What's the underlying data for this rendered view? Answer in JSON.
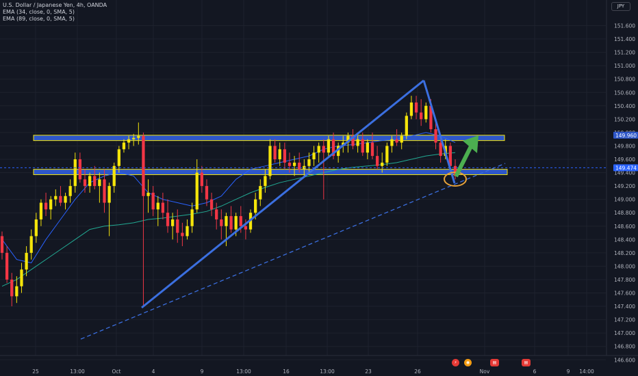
{
  "legend": {
    "symbol": "U.S. Dollar / Japanese Yen, 4h, OANDA",
    "ema1": "EMA (34, close, 0, SMA, 5)",
    "ema2": "EMA (89, close, 0, SMA, 5)"
  },
  "currency_badge": "JPY",
  "chart_data": {
    "type": "candlestick",
    "symbol": "USD/JPY",
    "timeframe": "4h",
    "source": "OANDA",
    "ylim": [
      146.6,
      151.9
    ],
    "y_ticks": [
      "151.600",
      "151.400",
      "151.200",
      "151.000",
      "150.800",
      "150.600",
      "150.400",
      "150.200",
      "150.000",
      "149.800",
      "149.600",
      "149.400",
      "149.200",
      "149.000",
      "148.800",
      "148.600",
      "148.400",
      "148.200",
      "148.000",
      "147.800",
      "147.600",
      "147.400",
      "147.200",
      "147.000",
      "146.800",
      "146.600"
    ],
    "x_ticks": [
      "25",
      "13:00",
      "Oct",
      "4",
      "9",
      "13:00",
      "16",
      "13:00",
      "23",
      "26",
      "Nov",
      "6",
      "9",
      "14:00"
    ],
    "colors": {
      "up": "#f5e50a",
      "down": "#f23645",
      "ema34": "#2962ff",
      "ema89": "#22ab94",
      "zone_fill": "#2e57c9",
      "zone_border": "#f5e50a",
      "trend": "#3b6fe0",
      "arrow": "#4caf50",
      "highlight": "#e8a33a",
      "price_line": "#2962ff"
    },
    "series": [
      {
        "name": "EMA (34, close, 0, SMA, 5)",
        "values": [
          148.4,
          148.1,
          148.05,
          148.4,
          148.7,
          149.0,
          149.25,
          149.35,
          149.4,
          149.35,
          149.1,
          149.0,
          148.95,
          148.9,
          148.95,
          149.05,
          149.3,
          149.45,
          149.5,
          149.55,
          149.6,
          149.65,
          149.75,
          149.8,
          149.82,
          149.85,
          149.88,
          149.9,
          149.95,
          150.0,
          149.95,
          149.85
        ]
      },
      {
        "name": "EMA (89, close, 0, SMA, 5)",
        "values": [
          147.7,
          147.8,
          147.95,
          148.1,
          148.25,
          148.4,
          148.55,
          148.6,
          148.62,
          148.65,
          148.7,
          148.72,
          148.75,
          148.78,
          148.82,
          148.9,
          149.0,
          149.1,
          149.18,
          149.25,
          149.3,
          149.35,
          149.4,
          149.45,
          149.48,
          149.5,
          149.52,
          149.55,
          149.6,
          149.65,
          149.68,
          149.7
        ]
      }
    ],
    "candles_ohlc": [
      [
        148.45,
        148.52,
        148.1,
        148.2
      ],
      [
        148.2,
        148.3,
        147.75,
        147.8
      ],
      [
        147.8,
        147.9,
        147.4,
        147.55
      ],
      [
        147.55,
        147.85,
        147.45,
        147.7
      ],
      [
        147.7,
        148.05,
        147.6,
        147.95
      ],
      [
        147.95,
        148.3,
        147.85,
        148.2
      ],
      [
        148.2,
        148.55,
        148.1,
        148.45
      ],
      [
        148.45,
        148.8,
        148.35,
        148.7
      ],
      [
        148.7,
        149.0,
        148.6,
        148.95
      ],
      [
        148.95,
        149.1,
        148.75,
        148.85
      ],
      [
        148.85,
        149.05,
        148.7,
        149.0
      ],
      [
        149.0,
        149.15,
        148.9,
        149.05
      ],
      [
        149.05,
        149.2,
        148.9,
        148.95
      ],
      [
        148.95,
        149.1,
        148.85,
        149.05
      ],
      [
        149.05,
        149.3,
        148.95,
        149.2
      ],
      [
        149.2,
        149.7,
        149.1,
        149.6
      ],
      [
        149.6,
        149.7,
        149.25,
        149.3
      ],
      [
        149.3,
        149.45,
        149.1,
        149.2
      ],
      [
        149.2,
        149.4,
        149.1,
        149.35
      ],
      [
        149.35,
        149.5,
        149.15,
        149.2
      ],
      [
        149.2,
        149.4,
        148.95,
        149.3
      ],
      [
        149.3,
        149.45,
        148.8,
        148.95
      ],
      [
        148.95,
        149.25,
        148.45,
        149.2
      ],
      [
        149.2,
        149.55,
        149.1,
        149.5
      ],
      [
        149.5,
        149.8,
        149.4,
        149.75
      ],
      [
        149.75,
        149.9,
        149.7,
        149.85
      ],
      [
        149.85,
        149.95,
        149.75,
        149.9
      ],
      [
        149.9,
        149.98,
        149.8,
        149.92
      ],
      [
        149.92,
        150.15,
        149.82,
        149.95
      ],
      [
        149.95,
        150.0,
        147.4,
        149.05
      ],
      [
        149.05,
        149.3,
        148.8,
        149.1
      ],
      [
        149.1,
        149.2,
        148.75,
        148.85
      ],
      [
        148.85,
        149.05,
        148.6,
        148.95
      ],
      [
        148.95,
        149.1,
        148.7,
        148.8
      ],
      [
        148.8,
        149.0,
        148.5,
        148.6
      ],
      [
        148.6,
        148.8,
        148.4,
        148.7
      ],
      [
        148.7,
        148.85,
        148.35,
        148.5
      ],
      [
        148.5,
        148.65,
        148.3,
        148.45
      ],
      [
        148.45,
        148.7,
        148.4,
        148.6
      ],
      [
        148.6,
        148.95,
        148.5,
        148.85
      ],
      [
        148.85,
        149.6,
        148.8,
        149.4
      ],
      [
        149.4,
        149.5,
        149.1,
        149.2
      ],
      [
        149.2,
        149.3,
        148.9,
        149.0
      ],
      [
        149.0,
        149.1,
        148.75,
        148.85
      ],
      [
        148.85,
        148.95,
        148.55,
        148.7
      ],
      [
        148.7,
        148.85,
        148.4,
        148.6
      ],
      [
        148.6,
        148.8,
        148.3,
        148.75
      ],
      [
        148.75,
        148.9,
        148.5,
        148.55
      ],
      [
        148.55,
        148.8,
        148.45,
        148.75
      ],
      [
        148.75,
        148.9,
        148.5,
        148.6
      ],
      [
        148.6,
        148.7,
        148.4,
        148.55
      ],
      [
        148.55,
        148.85,
        148.5,
        148.8
      ],
      [
        148.8,
        149.1,
        148.7,
        149.0
      ],
      [
        149.0,
        149.3,
        148.9,
        149.2
      ],
      [
        149.2,
        149.45,
        149.1,
        149.35
      ],
      [
        149.35,
        149.9,
        149.3,
        149.8
      ],
      [
        149.8,
        149.9,
        149.55,
        149.6
      ],
      [
        149.6,
        149.85,
        149.5,
        149.75
      ],
      [
        149.75,
        149.85,
        149.45,
        149.55
      ],
      [
        149.55,
        149.7,
        149.4,
        149.5
      ],
      [
        149.5,
        149.65,
        149.35,
        149.55
      ],
      [
        149.55,
        149.7,
        149.4,
        149.45
      ],
      [
        149.45,
        149.6,
        149.35,
        149.5
      ],
      [
        149.5,
        149.7,
        149.4,
        149.6
      ],
      [
        149.6,
        149.8,
        149.5,
        149.7
      ],
      [
        149.7,
        149.85,
        149.55,
        149.8
      ],
      [
        149.8,
        149.9,
        149.0,
        149.7
      ],
      [
        149.7,
        149.95,
        149.65,
        149.9
      ],
      [
        149.9,
        150.0,
        149.6,
        149.65
      ],
      [
        149.65,
        149.85,
        149.55,
        149.8
      ],
      [
        149.8,
        149.95,
        149.7,
        149.85
      ],
      [
        149.85,
        150.0,
        149.7,
        149.95
      ],
      [
        149.95,
        150.05,
        149.75,
        149.8
      ],
      [
        149.8,
        149.95,
        149.7,
        149.9
      ],
      [
        149.9,
        150.0,
        149.65,
        149.7
      ],
      [
        149.7,
        149.9,
        149.6,
        149.85
      ],
      [
        149.85,
        150.0,
        149.6,
        149.65
      ],
      [
        149.65,
        149.8,
        149.45,
        149.5
      ],
      [
        149.5,
        149.7,
        149.4,
        149.55
      ],
      [
        149.55,
        149.85,
        149.5,
        149.8
      ],
      [
        149.8,
        149.95,
        149.7,
        149.9
      ],
      [
        149.9,
        150.05,
        149.8,
        149.85
      ],
      [
        149.85,
        150.0,
        149.75,
        149.95
      ],
      [
        149.95,
        150.3,
        149.9,
        150.25
      ],
      [
        150.25,
        150.55,
        150.2,
        150.45
      ],
      [
        150.45,
        150.55,
        150.2,
        150.3
      ],
      [
        150.3,
        150.5,
        150.1,
        150.2
      ],
      [
        150.2,
        150.45,
        150.15,
        150.4
      ],
      [
        150.4,
        150.5,
        150.0,
        150.05
      ],
      [
        150.05,
        150.15,
        149.75,
        149.85
      ],
      [
        149.85,
        149.95,
        149.55,
        149.65
      ],
      [
        149.65,
        149.9,
        149.6,
        149.8
      ],
      [
        149.8,
        149.85,
        149.45,
        149.5
      ],
      [
        149.5,
        149.6,
        149.3,
        149.35
      ]
    ],
    "annotations": {
      "resistance_zone": [
        149.88,
        149.96
      ],
      "support_zone": [
        149.37,
        149.45
      ],
      "triangle_apex": 150.78,
      "triangle_left_low": 147.38,
      "target_arrow_to": 150.0,
      "current_price": 149.474
    }
  }
}
